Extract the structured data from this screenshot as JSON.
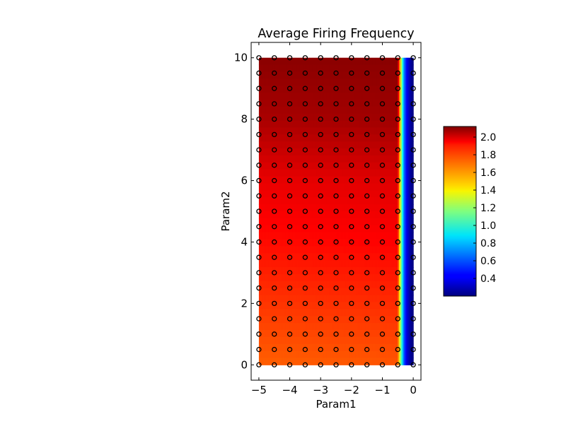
{
  "chart_data": {
    "type": "heatmap",
    "title": "Average Firing Frequency",
    "xlabel": "Param1",
    "ylabel": "Param2",
    "xlim": [
      -5.25,
      0.25
    ],
    "ylim": [
      -0.5,
      10.5
    ],
    "x_ticks": [
      -5,
      -4,
      -3,
      -2,
      -1,
      0
    ],
    "x_tick_labels": [
      "−5",
      "−4",
      "−3",
      "−2",
      "−1",
      "0"
    ],
    "y_ticks": [
      0,
      2,
      4,
      6,
      8,
      10
    ],
    "y_tick_labels": [
      "0",
      "2",
      "4",
      "6",
      "8",
      "10"
    ],
    "grid": false,
    "colormap": "jet",
    "colorbar": {
      "min": 0.2,
      "max": 2.12,
      "ticks": [
        0.4,
        0.6,
        0.8,
        1.0,
        1.2,
        1.4,
        1.6,
        1.8,
        2.0
      ],
      "tick_labels": [
        "0.4",
        "0.6",
        "0.8",
        "1.0",
        "1.2",
        "1.4",
        "1.6",
        "1.8",
        "2.0"
      ]
    },
    "sample_points": {
      "x": [
        -5,
        -4.5,
        -4,
        -3.5,
        -3,
        -2.5,
        -2,
        -1.5,
        -1,
        -0.5,
        0
      ],
      "y": [
        0,
        0.5,
        1,
        1.5,
        2,
        2.5,
        3,
        3.5,
        4,
        4.5,
        5,
        5.5,
        6,
        6.5,
        7,
        7.5,
        8,
        8.5,
        9,
        9.5,
        10
      ],
      "marker": "open-circle"
    },
    "surface": {
      "x": [
        -5,
        -0.5,
        -0.4,
        -0.3,
        -0.2,
        -0.1,
        0
      ],
      "y": [
        0,
        2,
        4,
        6,
        8,
        10
      ],
      "z": [
        [
          1.7,
          1.72,
          1.1,
          0.6,
          0.35,
          0.25,
          0.2
        ],
        [
          1.78,
          1.8,
          1.15,
          0.62,
          0.36,
          0.25,
          0.2
        ],
        [
          1.86,
          1.88,
          1.2,
          0.64,
          0.37,
          0.26,
          0.2
        ],
        [
          1.92,
          1.94,
          1.25,
          0.66,
          0.38,
          0.26,
          0.2
        ],
        [
          2.04,
          2.06,
          1.3,
          0.68,
          0.39,
          0.27,
          0.2
        ],
        [
          2.1,
          2.1,
          1.35,
          0.7,
          0.4,
          0.27,
          0.2
        ]
      ]
    }
  }
}
